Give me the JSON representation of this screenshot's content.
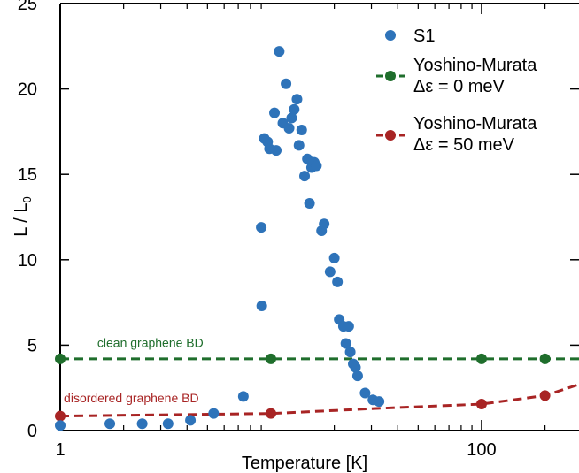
{
  "chart_data": {
    "type": "scatter",
    "xlabel": "Temperature [K]",
    "ylabel": "L / L",
    "ylabel_subscript": "0",
    "xscale": "log",
    "xlim": [
      1,
      290
    ],
    "ylim": [
      0,
      25
    ],
    "x_ticks": [
      {
        "value": 1,
        "label": "1"
      },
      {
        "value": 100,
        "label": "100"
      }
    ],
    "y_ticks": [
      0,
      5,
      10,
      15,
      20,
      25
    ],
    "grid": false,
    "legend_position": "top-right",
    "series": [
      {
        "name": "S1",
        "marker": "dot",
        "color": "#2e73b9",
        "points": [
          [
            1.0,
            0.3
          ],
          [
            1.72,
            0.4
          ],
          [
            2.45,
            0.4
          ],
          [
            3.25,
            0.4
          ],
          [
            4.15,
            0.6
          ],
          [
            5.35,
            1.0
          ],
          [
            7.4,
            2.0
          ],
          [
            9.0,
            11.9
          ],
          [
            9.05,
            7.3
          ],
          [
            9.3,
            17.1
          ],
          [
            9.65,
            16.9
          ],
          [
            9.85,
            16.5
          ],
          [
            10.4,
            18.6
          ],
          [
            10.6,
            16.4
          ],
          [
            10.95,
            22.2
          ],
          [
            11.4,
            18.0
          ],
          [
            11.8,
            20.3
          ],
          [
            12.2,
            17.7
          ],
          [
            12.55,
            18.3
          ],
          [
            12.9,
            18.8
          ],
          [
            13.3,
            19.4
          ],
          [
            13.6,
            16.7
          ],
          [
            14.0,
            17.6
          ],
          [
            14.45,
            14.9
          ],
          [
            14.9,
            15.9
          ],
          [
            15.25,
            13.3
          ],
          [
            15.6,
            15.4
          ],
          [
            16.05,
            15.7
          ],
          [
            16.45,
            15.5
          ],
          [
            17.4,
            11.7
          ],
          [
            17.9,
            12.1
          ],
          [
            19.1,
            9.3
          ],
          [
            20.0,
            10.1
          ],
          [
            20.7,
            8.7
          ],
          [
            21.1,
            6.5
          ],
          [
            22.1,
            6.1
          ],
          [
            22.7,
            5.1
          ],
          [
            23.4,
            6.1
          ],
          [
            23.8,
            4.6
          ],
          [
            24.6,
            3.9
          ],
          [
            25.2,
            3.7
          ],
          [
            25.8,
            3.2
          ],
          [
            28.0,
            2.2
          ],
          [
            30.5,
            1.8
          ],
          [
            32.6,
            1.7
          ]
        ]
      },
      {
        "name": "Yoshino-Murata",
        "name_line2": "Δε = 0 meV",
        "marker": "dot-dashed-line",
        "color": "#1f6e2c",
        "points": [
          [
            1,
            4.2
          ],
          [
            10,
            4.2
          ],
          [
            100,
            4.2
          ],
          [
            200,
            4.2
          ],
          [
            290,
            4.2
          ]
        ]
      },
      {
        "name": "Yoshino-Murata",
        "name_line2": "Δε = 50 meV",
        "marker": "dot-dashed-line",
        "color": "#a82424",
        "points": [
          [
            1,
            0.85
          ],
          [
            10,
            1.0
          ],
          [
            32.6,
            1.3
          ],
          [
            100,
            1.55
          ],
          [
            200,
            2.05
          ],
          [
            290,
            2.7
          ]
        ]
      }
    ],
    "annotations": [
      {
        "text": "clean graphene BD",
        "x": 1.5,
        "y": 4.9,
        "color": "#1f6e2c"
      },
      {
        "text": "disordered graphene BD",
        "x": 1.04,
        "y": 1.65,
        "color": "#a82424"
      }
    ]
  }
}
